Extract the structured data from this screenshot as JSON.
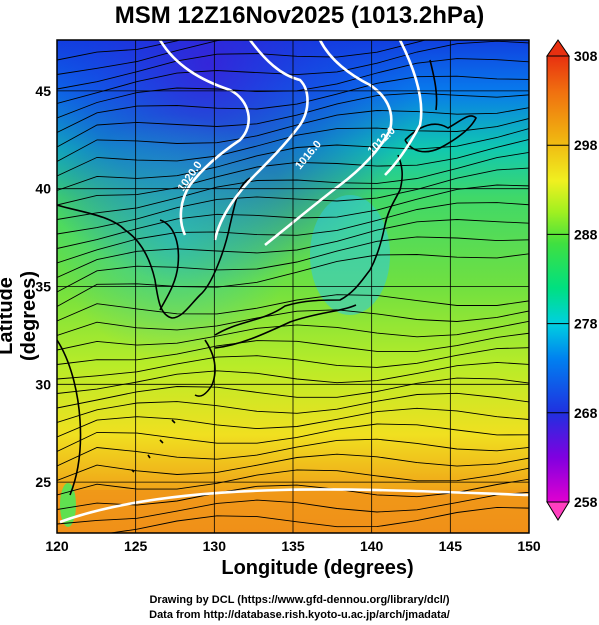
{
  "title": "MSM 12Z16Nov2025 (1013.2hPa)",
  "x_axis": {
    "label": "Longitude (degrees)",
    "range": [
      120,
      150
    ],
    "ticks": [
      120,
      125,
      130,
      135,
      140,
      145,
      150
    ]
  },
  "y_axis": {
    "label": "Latitude  (degrees)",
    "range": [
      22.4,
      47.6
    ],
    "ticks": [
      25,
      30,
      35,
      40,
      45
    ]
  },
  "colorbar": {
    "range": [
      258,
      308
    ],
    "ticks": [
      258,
      268,
      278,
      288,
      298,
      308
    ],
    "colors": [
      "#e000d0",
      "#8000e0",
      "#2030e0",
      "#0080f0",
      "#00d0e0",
      "#00e080",
      "#40e040",
      "#a0f020",
      "#f0f020",
      "#f0b010",
      "#f07010",
      "#e83010"
    ]
  },
  "contours": [
    {
      "label": "1020.0"
    },
    {
      "label": "1016.0"
    },
    {
      "label": "1012.0"
    }
  ],
  "credits": {
    "line1": "Drawing by DCL (https://www.gfd-dennou.org/library/dcl/)",
    "line2": "Data from http://database.rish.kyoto-u.ac.jp/arch/jmadata/"
  }
}
